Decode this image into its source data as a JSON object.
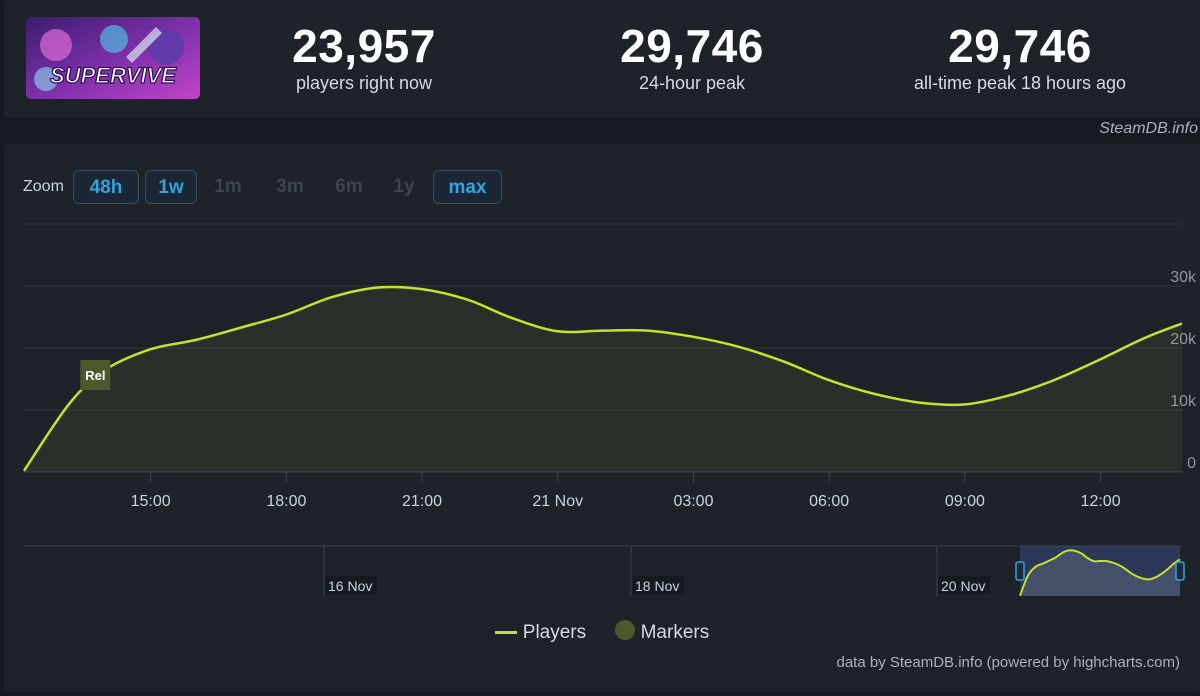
{
  "header": {
    "logo_text": "SUPERVIVE",
    "stats": [
      {
        "value": "23,957",
        "label": "players right now"
      },
      {
        "value": "29,746",
        "label": "24-hour peak"
      },
      {
        "value": "29,746",
        "label": "all-time peak 18 hours ago"
      }
    ],
    "credit": "SteamDB.info"
  },
  "zoom": {
    "label": "Zoom",
    "buttons": [
      {
        "label": "48h",
        "active": true
      },
      {
        "label": "1w",
        "active": true
      },
      {
        "label": "1m",
        "active": false
      },
      {
        "label": "3m",
        "active": false
      },
      {
        "label": "6m",
        "active": false
      },
      {
        "label": "1y",
        "active": false
      },
      {
        "label": "max",
        "active": true
      }
    ]
  },
  "chart_data": {
    "type": "area",
    "x_unit": "hour (20 Nov 2024 local time)",
    "x": [
      12.2,
      13.2,
      14.0,
      15.0,
      16.0,
      17.0,
      18.0,
      19.0,
      20.0,
      21.0,
      22.0,
      23.0,
      24.0,
      25.0,
      26.0,
      27.0,
      28.0,
      29.0,
      30.0,
      31.0,
      32.0,
      33.0,
      34.0,
      35.0,
      36.0,
      37.0,
      37.8
    ],
    "series": [
      {
        "name": "Players",
        "color": "#c6e22b",
        "values": [
          200,
          11000,
          16500,
          19800,
          21300,
          23300,
          25400,
          28200,
          29746,
          29500,
          27800,
          24800,
          22700,
          22800,
          22800,
          21800,
          20200,
          17800,
          14800,
          12600,
          11200,
          10900,
          12400,
          14900,
          18200,
          21700,
          23957
        ]
      }
    ],
    "markers": [
      {
        "label": "Rel",
        "x": 13.8
      }
    ],
    "xlim": [
      12.2,
      37.8
    ],
    "ylim": [
      0,
      30000
    ],
    "x_tick_labels": [
      {
        "x": 15,
        "label": "15:00"
      },
      {
        "x": 18,
        "label": "18:00"
      },
      {
        "x": 21,
        "label": "21:00"
      },
      {
        "x": 24,
        "label": "21 Nov"
      },
      {
        "x": 27,
        "label": "03:00"
      },
      {
        "x": 30,
        "label": "06:00"
      },
      {
        "x": 33,
        "label": "09:00"
      },
      {
        "x": 36,
        "label": "12:00"
      }
    ],
    "y_ticks": [
      {
        "v": 0,
        "label": "0"
      },
      {
        "v": 10000,
        "label": "10k"
      },
      {
        "v": 20000,
        "label": "20k"
      },
      {
        "v": 30000,
        "label": "30k"
      }
    ],
    "grid": true,
    "legend": {
      "position": "bottom-center",
      "items": [
        {
          "label": "Players",
          "kind": "line"
        },
        {
          "label": "Markers",
          "kind": "dot"
        }
      ]
    },
    "navigator": {
      "date_labels": [
        "16 Nov",
        "18 Nov",
        "20 Nov"
      ]
    }
  },
  "credit_bottom": "data by SteamDB.info (powered by highcharts.com)"
}
